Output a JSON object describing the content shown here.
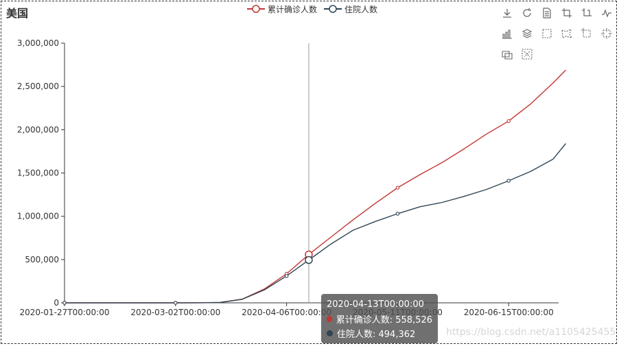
{
  "title": "美国",
  "legend": [
    {
      "name": "累计确诊人数",
      "color": "#c23531"
    },
    {
      "name": "住院人数",
      "color": "#2f4554"
    }
  ],
  "toolbox": [
    "download-icon",
    "refresh-icon",
    "data-view-icon",
    "zoom-icon",
    "zoom-reset-icon",
    "line-chart-icon",
    "bar-chart-icon",
    "stack-icon",
    "select-rect-icon",
    "select-polygon-icon",
    "keep-select-icon",
    "clear-select-icon",
    "brush-icon",
    "clear-brush-icon"
  ],
  "tooltip": {
    "header": "2020-04-13T00:00:00",
    "rows": [
      {
        "label": "累计确诊人数: 558,526",
        "color": "#c23531"
      },
      {
        "label": "住院人数: 494,362",
        "color": "#2f4554"
      }
    ]
  },
  "watermark": "https://blog.csdn.net/a1105425455",
  "chart_data": {
    "type": "line",
    "xlabel": "",
    "ylabel": "",
    "ylim": [
      0,
      3000000
    ],
    "y_ticks": [
      "0",
      "500,000",
      "1,000,000",
      "1,500,000",
      "2,000,000",
      "2,500,000",
      "3,000,000"
    ],
    "x_ticks": [
      "2020-01-27T00:00:00",
      "2020-03-02T00:00:00",
      "2020-04-06T00:00:00",
      "2020-05-11T00:00:00",
      "2020-06-15T00:00:00"
    ],
    "x": [
      "2020-01-27",
      "2020-02-10",
      "2020-03-02",
      "2020-03-09",
      "2020-03-16",
      "2020-03-23",
      "2020-03-30",
      "2020-04-06",
      "2020-04-13",
      "2020-04-20",
      "2020-04-27",
      "2020-05-04",
      "2020-05-11",
      "2020-05-18",
      "2020-05-25",
      "2020-06-01",
      "2020-06-08",
      "2020-06-15",
      "2020-06-22",
      "2020-06-29",
      "2020-07-03"
    ],
    "series": [
      {
        "name": "累计确诊人数",
        "color": "#c23531",
        "values": [
          0,
          0,
          100,
          600,
          4500,
          43000,
          160000,
          336000,
          558526,
          760000,
          960000,
          1150000,
          1330000,
          1480000,
          1620000,
          1780000,
          1950000,
          2100000,
          2300000,
          2540000,
          2690000
        ]
      },
      {
        "name": "住院人数",
        "color": "#2f4554",
        "values": [
          0,
          0,
          100,
          550,
          4000,
          40000,
          150000,
          310000,
          494362,
          680000,
          840000,
          940000,
          1030000,
          1110000,
          1160000,
          1230000,
          1310000,
          1410000,
          1520000,
          1660000,
          1840000
        ]
      }
    ],
    "grid": false,
    "legend_position": "top-center"
  }
}
